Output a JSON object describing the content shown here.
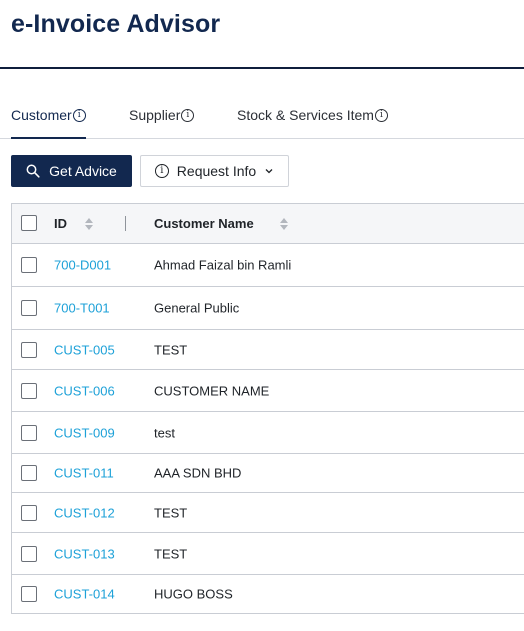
{
  "app": {
    "title": "e-Invoice Advisor"
  },
  "tabs": [
    {
      "label": "Customer",
      "active": true
    },
    {
      "label": "Supplier",
      "active": false
    },
    {
      "label": "Stock & Services Item",
      "active": false
    }
  ],
  "toolbar": {
    "get_advice_label": "Get Advice",
    "request_info_label": "Request Info"
  },
  "table": {
    "columns": [
      "ID",
      "Customer Name"
    ],
    "rows": [
      {
        "id": "700-D001",
        "name": "Ahmad Faizal bin Ramli"
      },
      {
        "id": "700-T001",
        "name": "General Public"
      },
      {
        "id": "CUST-005",
        "name": "TEST"
      },
      {
        "id": "CUST-006",
        "name": "CUSTOMER NAME"
      },
      {
        "id": "CUST-009",
        "name": "test"
      },
      {
        "id": "CUST-011",
        "name": "AAA SDN BHD"
      },
      {
        "id": "CUST-012",
        "name": "TEST"
      },
      {
        "id": "CUST-013",
        "name": "TEST"
      },
      {
        "id": "CUST-014",
        "name": "HUGO BOSS"
      }
    ]
  },
  "colors": {
    "brand": "#12284f",
    "link": "#1da1d8",
    "border": "#c9cdd4"
  }
}
